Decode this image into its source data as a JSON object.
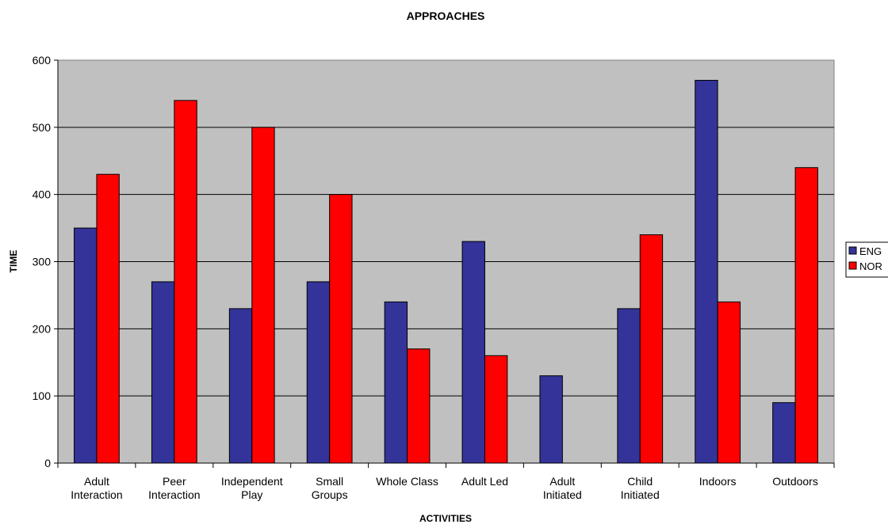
{
  "chart_data": {
    "type": "bar",
    "title": "APPROACHES",
    "xlabel": "ACTIVITIES",
    "ylabel": "TIME",
    "ylim": [
      0,
      600
    ],
    "yticks": [
      0,
      100,
      200,
      300,
      400,
      500,
      600
    ],
    "grid": true,
    "legend_position": "right",
    "plot_background": "#c0c0c0",
    "categories": [
      [
        "Adult",
        "Interaction"
      ],
      [
        "Peer",
        "Interaction"
      ],
      [
        "Independent",
        "Play"
      ],
      [
        "Small",
        "Groups"
      ],
      [
        "Whole Class"
      ],
      [
        "Adult Led"
      ],
      [
        "Adult",
        "Initiated"
      ],
      [
        "Child",
        "Initiated"
      ],
      [
        "Indoors"
      ],
      [
        "Outdoors"
      ]
    ],
    "series": [
      {
        "name": "ENG",
        "color": "#333399",
        "values": [
          350,
          270,
          230,
          270,
          240,
          330,
          130,
          230,
          570,
          90
        ]
      },
      {
        "name": "NOR",
        "color": "#ff0000",
        "values": [
          430,
          540,
          500,
          400,
          170,
          160,
          0,
          340,
          240,
          440
        ]
      }
    ]
  }
}
